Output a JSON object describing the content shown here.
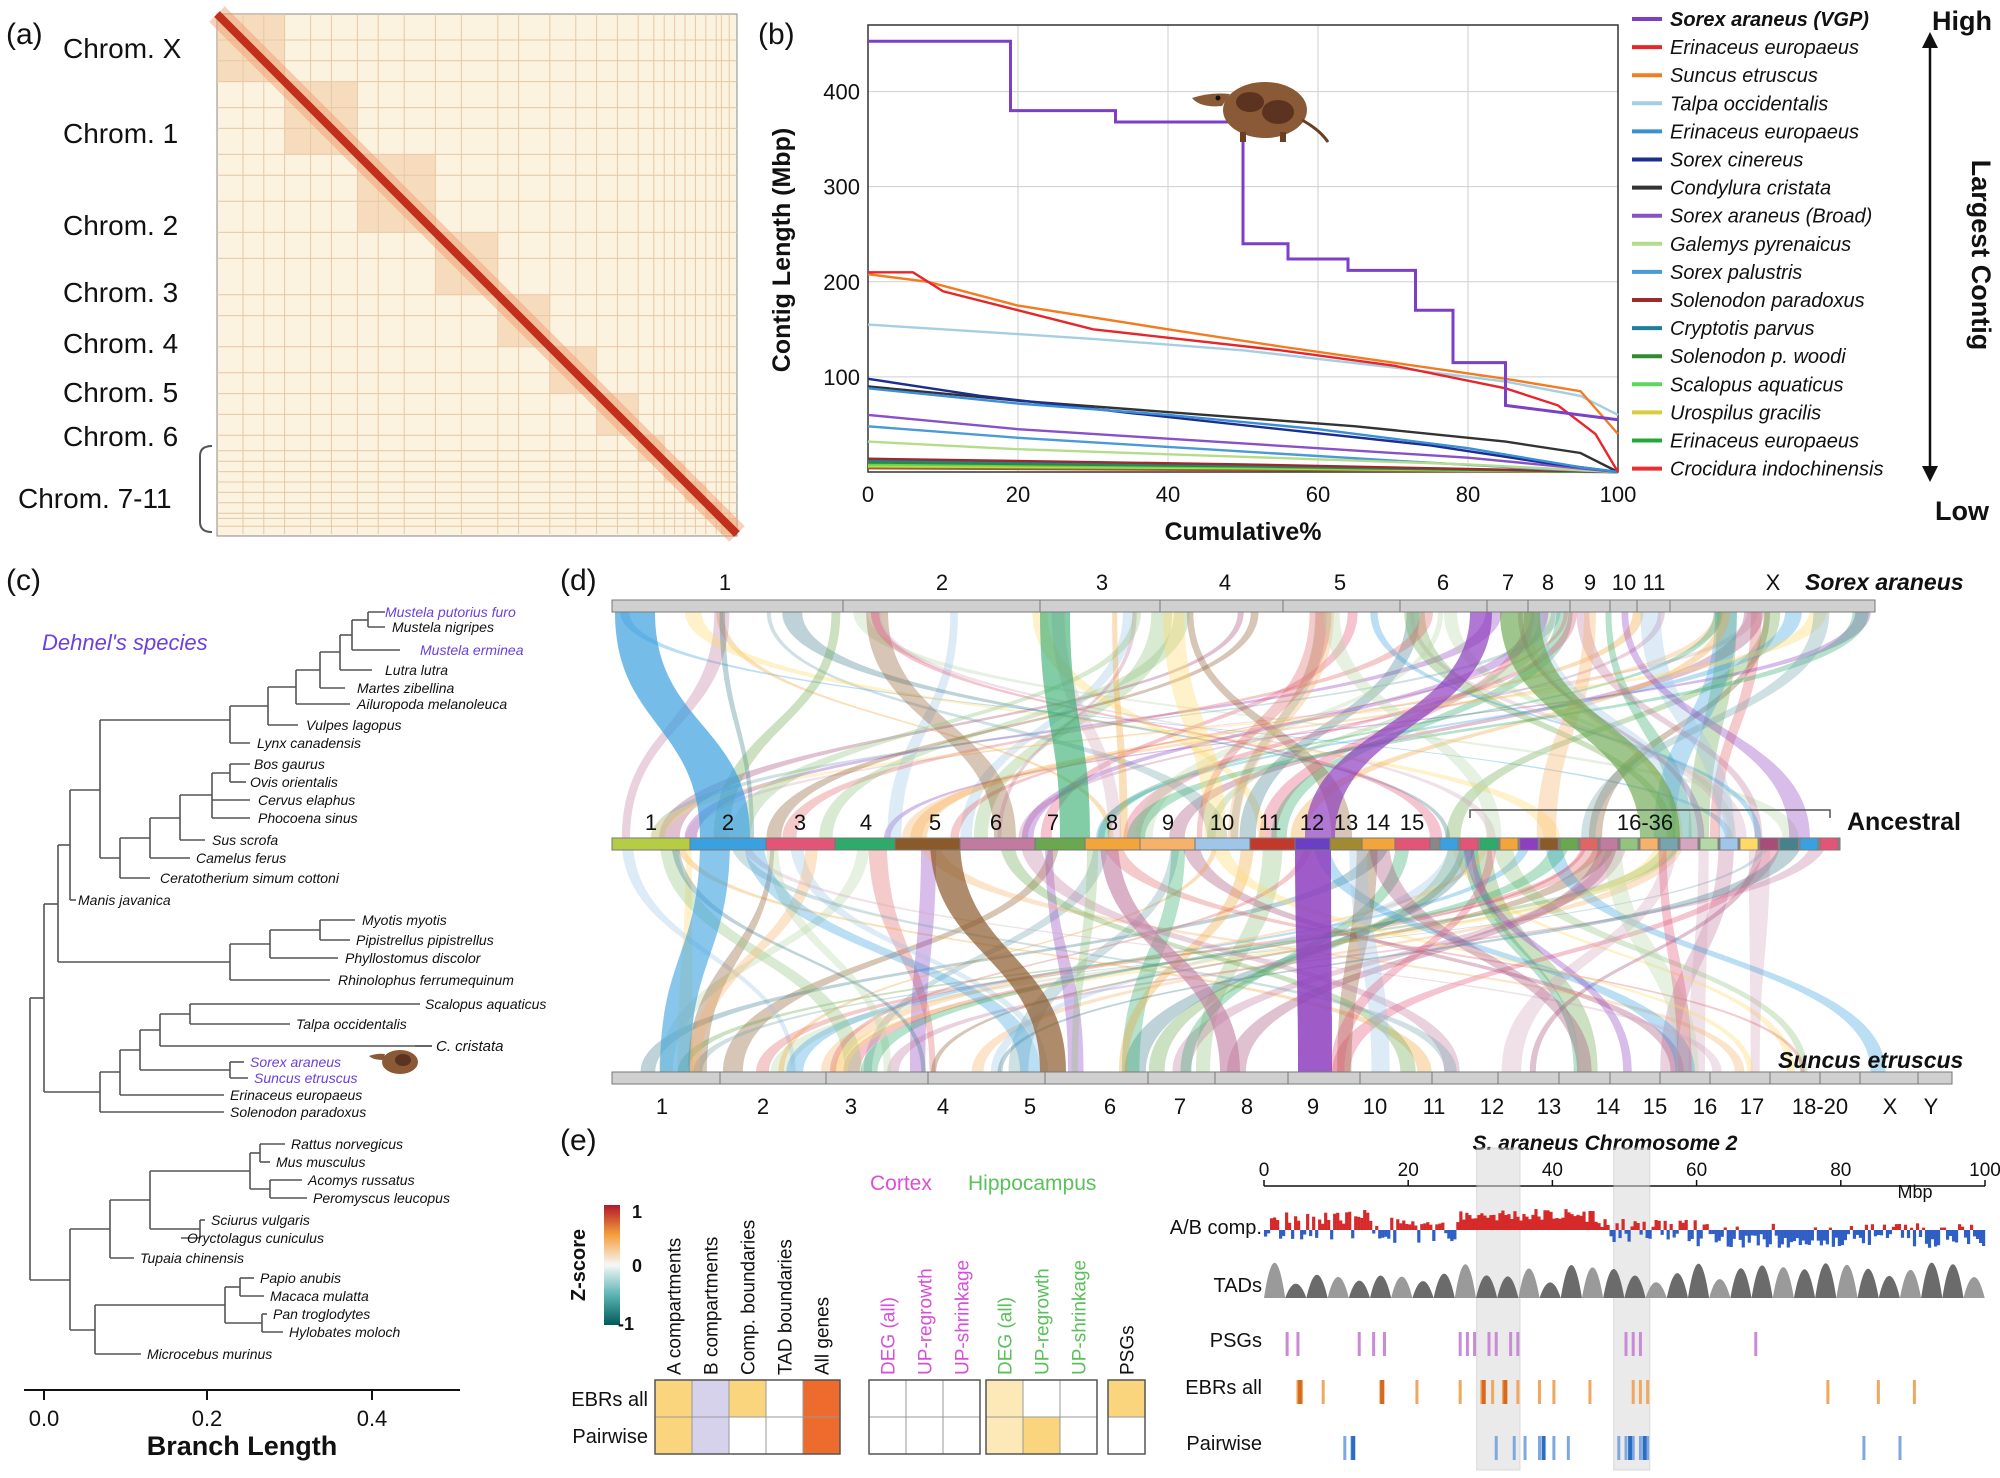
{
  "panels": {
    "a": {
      "letter": "(a)",
      "labels": [
        "Chrom. X",
        "Chrom. 1",
        "Chrom. 2",
        "Chrom. 3",
        "Chrom. 4",
        "Chrom. 5",
        "Chrom. 6",
        "Chrom. 7-11"
      ]
    },
    "b": {
      "letter": "(b)",
      "ylabel": "Contig Length (Mbp)",
      "xlabel": "Cumulative%",
      "arrow_high": "High",
      "arrow_low": "Low",
      "arrow_label": "Largest Contig"
    },
    "c": {
      "letter": "(c)",
      "dehnel_label": "Dehnel's species",
      "xlabel": "Branch Length",
      "ticks": [
        "0.0",
        "0.2",
        "0.4"
      ],
      "c_cristata": "C. cristata",
      "species": [
        {
          "name": "Mustela putorius furo",
          "highlight": true
        },
        {
          "name": "Mustela nigripes",
          "highlight": false
        },
        {
          "name": "Mustela erminea",
          "highlight": true
        },
        {
          "name": "Lutra lutra",
          "highlight": false
        },
        {
          "name": "Martes zibellina",
          "highlight": false
        },
        {
          "name": "Ailuropoda melanoleuca",
          "highlight": false
        },
        {
          "name": "Vulpes lagopus",
          "highlight": false
        },
        {
          "name": "Lynx canadensis",
          "highlight": false
        },
        {
          "name": "Bos gaurus",
          "highlight": false
        },
        {
          "name": "Ovis orientalis",
          "highlight": false
        },
        {
          "name": "Cervus elaphus",
          "highlight": false
        },
        {
          "name": "Phocoena sinus",
          "highlight": false
        },
        {
          "name": "Sus scrofa",
          "highlight": false
        },
        {
          "name": "Camelus ferus",
          "highlight": false
        },
        {
          "name": "Ceratotherium simum cottoni",
          "highlight": false
        },
        {
          "name": "Manis javanica",
          "highlight": false
        },
        {
          "name": "Myotis myotis",
          "highlight": false
        },
        {
          "name": "Pipistrellus pipistrellus",
          "highlight": false
        },
        {
          "name": "Phyllostomus discolor",
          "highlight": false
        },
        {
          "name": "Rhinolophus ferrumequinum",
          "highlight": false
        },
        {
          "name": "Scalopus aquaticus",
          "highlight": false
        },
        {
          "name": "Talpa occidentalis",
          "highlight": false
        },
        {
          "name": "Sorex araneus",
          "highlight": true
        },
        {
          "name": "Suncus etruscus",
          "highlight": true
        },
        {
          "name": "Erinaceus europaeus",
          "highlight": false
        },
        {
          "name": "Solenodon paradoxus",
          "highlight": false
        },
        {
          "name": "Rattus norvegicus",
          "highlight": false
        },
        {
          "name": "Mus musculus",
          "highlight": false
        },
        {
          "name": "Acomys russatus",
          "highlight": false
        },
        {
          "name": "Peromyscus leucopus",
          "highlight": false
        },
        {
          "name": "Sciurus vulgaris",
          "highlight": false
        },
        {
          "name": "Oryctolagus cuniculus",
          "highlight": false
        },
        {
          "name": "Tupaia chinensis",
          "highlight": false
        },
        {
          "name": "Papio anubis",
          "highlight": false
        },
        {
          "name": "Macaca mulatta",
          "highlight": false
        },
        {
          "name": "Pan troglodytes",
          "highlight": false
        },
        {
          "name": "Hylobates moloch",
          "highlight": false
        },
        {
          "name": "Microcebus murinus",
          "highlight": false
        }
      ]
    },
    "d": {
      "letter": "(d)",
      "top_species": "Sorex araneus",
      "mid_label": "Ancestral",
      "bottom_species": "Suncus etruscus",
      "top_chroms": [
        "1",
        "2",
        "3",
        "4",
        "5",
        "6",
        "7",
        "8",
        "9",
        "10",
        "11",
        "X"
      ],
      "anc_chroms": [
        "1",
        "2",
        "3",
        "4",
        "5",
        "6",
        "7",
        "8",
        "9",
        "10",
        "11",
        "12",
        "13",
        "14",
        "15",
        "16-36"
      ],
      "bottom_chroms": [
        "1",
        "2",
        "3",
        "4",
        "5",
        "6",
        "7",
        "8",
        "9",
        "10",
        "11",
        "12",
        "13",
        "14",
        "15",
        "16",
        "17",
        "18-20",
        "X",
        "Y"
      ]
    },
    "e": {
      "letter": "(e)",
      "zscore_label": "Z-score",
      "zscore_ticks": [
        "1",
        "0",
        "-1"
      ],
      "cortex": "Cortex",
      "hippocampus": "Hippocampus",
      "columns_main": [
        "A compartments",
        "B compartments",
        "Comp. boundaries",
        "TAD boundaries",
        "All genes"
      ],
      "columns_cortex": [
        "DEG (all)",
        "UP-regrowth",
        "UP-shrinkage"
      ],
      "columns_hippo": [
        "DEG (all)",
        "UP-regrowth",
        "UP-shrinkage"
      ],
      "columns_psg": [
        "PSGs"
      ],
      "rows": [
        "EBRs all",
        "Pairwise"
      ],
      "chrom_title": "S. araneus Chromosome 2",
      "track_labels": [
        "A/B comp.",
        "TADs",
        "PSGs",
        "EBRs all",
        "Pairwise"
      ],
      "axis_ticks": [
        "0",
        "20",
        "40",
        "60",
        "80",
        "100"
      ],
      "axis_unit": "Mbp"
    }
  },
  "chart_data": {
    "type": "line",
    "xlabel": "Cumulative%",
    "ylabel": "Contig Length (Mbp)",
    "xlim": [
      0,
      100
    ],
    "ylim": [
      0,
      470
    ],
    "xticks": [
      "0",
      "20",
      "40",
      "60",
      "80",
      "100"
    ],
    "yticks": [
      "100",
      "200",
      "300",
      "400"
    ],
    "grid": true,
    "legend_position": "right",
    "series": [
      {
        "name": "Sorex araneus (VGP)",
        "color": "#7e3fc7",
        "steps": [
          [
            0,
            453
          ],
          [
            19,
            453
          ],
          [
            19,
            380
          ],
          [
            33,
            380
          ],
          [
            33,
            368
          ],
          [
            50,
            368
          ],
          [
            50,
            240
          ],
          [
            56,
            240
          ],
          [
            56,
            224
          ],
          [
            64,
            224
          ],
          [
            64,
            212
          ],
          [
            73,
            212
          ],
          [
            73,
            170
          ],
          [
            78,
            170
          ],
          [
            78,
            115
          ],
          [
            85,
            115
          ],
          [
            85,
            70
          ],
          [
            100,
            55
          ]
        ]
      },
      {
        "name": "Erinaceus europaeus",
        "color": "#e8262a",
        "steps": [
          [
            0,
            210
          ],
          [
            6,
            210
          ],
          [
            10,
            190
          ],
          [
            30,
            150
          ],
          [
            55,
            128
          ],
          [
            70,
            112
          ],
          [
            85,
            88
          ],
          [
            92,
            70
          ],
          [
            97,
            40
          ],
          [
            100,
            0
          ]
        ]
      },
      {
        "name": "Suncus etruscus",
        "color": "#f47b20",
        "steps": [
          [
            0,
            208
          ],
          [
            8,
            200
          ],
          [
            20,
            175
          ],
          [
            40,
            150
          ],
          [
            55,
            132
          ],
          [
            70,
            115
          ],
          [
            85,
            98
          ],
          [
            95,
            85
          ],
          [
            100,
            40
          ]
        ]
      },
      {
        "name": "Talpa occidentalis",
        "color": "#a6cee3",
        "steps": [
          [
            0,
            155
          ],
          [
            10,
            150
          ],
          [
            30,
            140
          ],
          [
            50,
            128
          ],
          [
            70,
            110
          ],
          [
            85,
            95
          ],
          [
            95,
            80
          ],
          [
            100,
            60
          ]
        ]
      },
      {
        "name": "Erinaceus europaeus",
        "color": "#3b8ed8",
        "steps": [
          [
            0,
            88
          ],
          [
            20,
            72
          ],
          [
            40,
            60
          ],
          [
            60,
            45
          ],
          [
            80,
            25
          ],
          [
            95,
            5
          ],
          [
            100,
            0
          ]
        ]
      },
      {
        "name": "Sorex cinereus",
        "color": "#1a2f8f",
        "steps": [
          [
            0,
            98
          ],
          [
            15,
            80
          ],
          [
            35,
            62
          ],
          [
            55,
            45
          ],
          [
            75,
            28
          ],
          [
            90,
            10
          ],
          [
            100,
            0
          ]
        ]
      },
      {
        "name": "Condylura cristata",
        "color": "#333333",
        "steps": [
          [
            0,
            90
          ],
          [
            20,
            75
          ],
          [
            45,
            60
          ],
          [
            65,
            48
          ],
          [
            85,
            32
          ],
          [
            95,
            20
          ],
          [
            100,
            0
          ]
        ]
      },
      {
        "name": "Sorex araneus (Broad)",
        "color": "#8850c9",
        "steps": [
          [
            0,
            60
          ],
          [
            20,
            45
          ],
          [
            40,
            35
          ],
          [
            60,
            25
          ],
          [
            80,
            15
          ],
          [
            100,
            0
          ]
        ]
      },
      {
        "name": "Galemys pyrenaicus",
        "color": "#b5dc8a",
        "steps": [
          [
            0,
            32
          ],
          [
            20,
            24
          ],
          [
            50,
            16
          ],
          [
            80,
            8
          ],
          [
            100,
            0
          ]
        ]
      },
      {
        "name": "Sorex palustris",
        "color": "#4a9ad8",
        "steps": [
          [
            0,
            48
          ],
          [
            20,
            36
          ],
          [
            45,
            24
          ],
          [
            70,
            12
          ],
          [
            90,
            3
          ],
          [
            100,
            0
          ]
        ]
      },
      {
        "name": "Solenodon paradoxus",
        "color": "#9c2a2a",
        "steps": [
          [
            0,
            14
          ],
          [
            50,
            8
          ],
          [
            100,
            0
          ]
        ]
      },
      {
        "name": "Cryptotis parvus",
        "color": "#1f7f9a",
        "steps": [
          [
            0,
            12
          ],
          [
            50,
            7
          ],
          [
            100,
            0
          ]
        ]
      },
      {
        "name": "Solenodon p. woodi",
        "color": "#2e8b2e",
        "steps": [
          [
            0,
            10
          ],
          [
            50,
            6
          ],
          [
            100,
            0
          ]
        ]
      },
      {
        "name": "Scalopus aquaticus",
        "color": "#5cd65c",
        "steps": [
          [
            0,
            8
          ],
          [
            50,
            5
          ],
          [
            100,
            0
          ]
        ]
      },
      {
        "name": "Urospilus gracilis",
        "color": "#d4cf3a",
        "steps": [
          [
            0,
            6
          ],
          [
            50,
            4
          ],
          [
            100,
            0
          ]
        ]
      },
      {
        "name": "Erinaceus europaeus",
        "color": "#24a836",
        "steps": [
          [
            0,
            5
          ],
          [
            50,
            3
          ],
          [
            100,
            0
          ]
        ]
      },
      {
        "name": "Crocidura indochinensis",
        "color": "#e83030",
        "steps": [
          [
            0,
            4
          ],
          [
            50,
            2
          ],
          [
            100,
            0
          ]
        ]
      }
    ],
    "heatmap": {
      "rows": [
        "EBRs all",
        "Pairwise"
      ],
      "main": [
        [
          0.45,
          -0.35,
          0.5,
          0,
          0.95
        ],
        [
          0.5,
          -0.35,
          0,
          0,
          0.85
        ]
      ],
      "cortex": [
        [
          0,
          0,
          0
        ],
        [
          0,
          0,
          0
        ]
      ],
      "hippo": [
        [
          0.2,
          0,
          0
        ],
        [
          0.15,
          0.55,
          0
        ]
      ],
      "psg": [
        [
          0.5
        ],
        [
          0
        ]
      ]
    }
  }
}
